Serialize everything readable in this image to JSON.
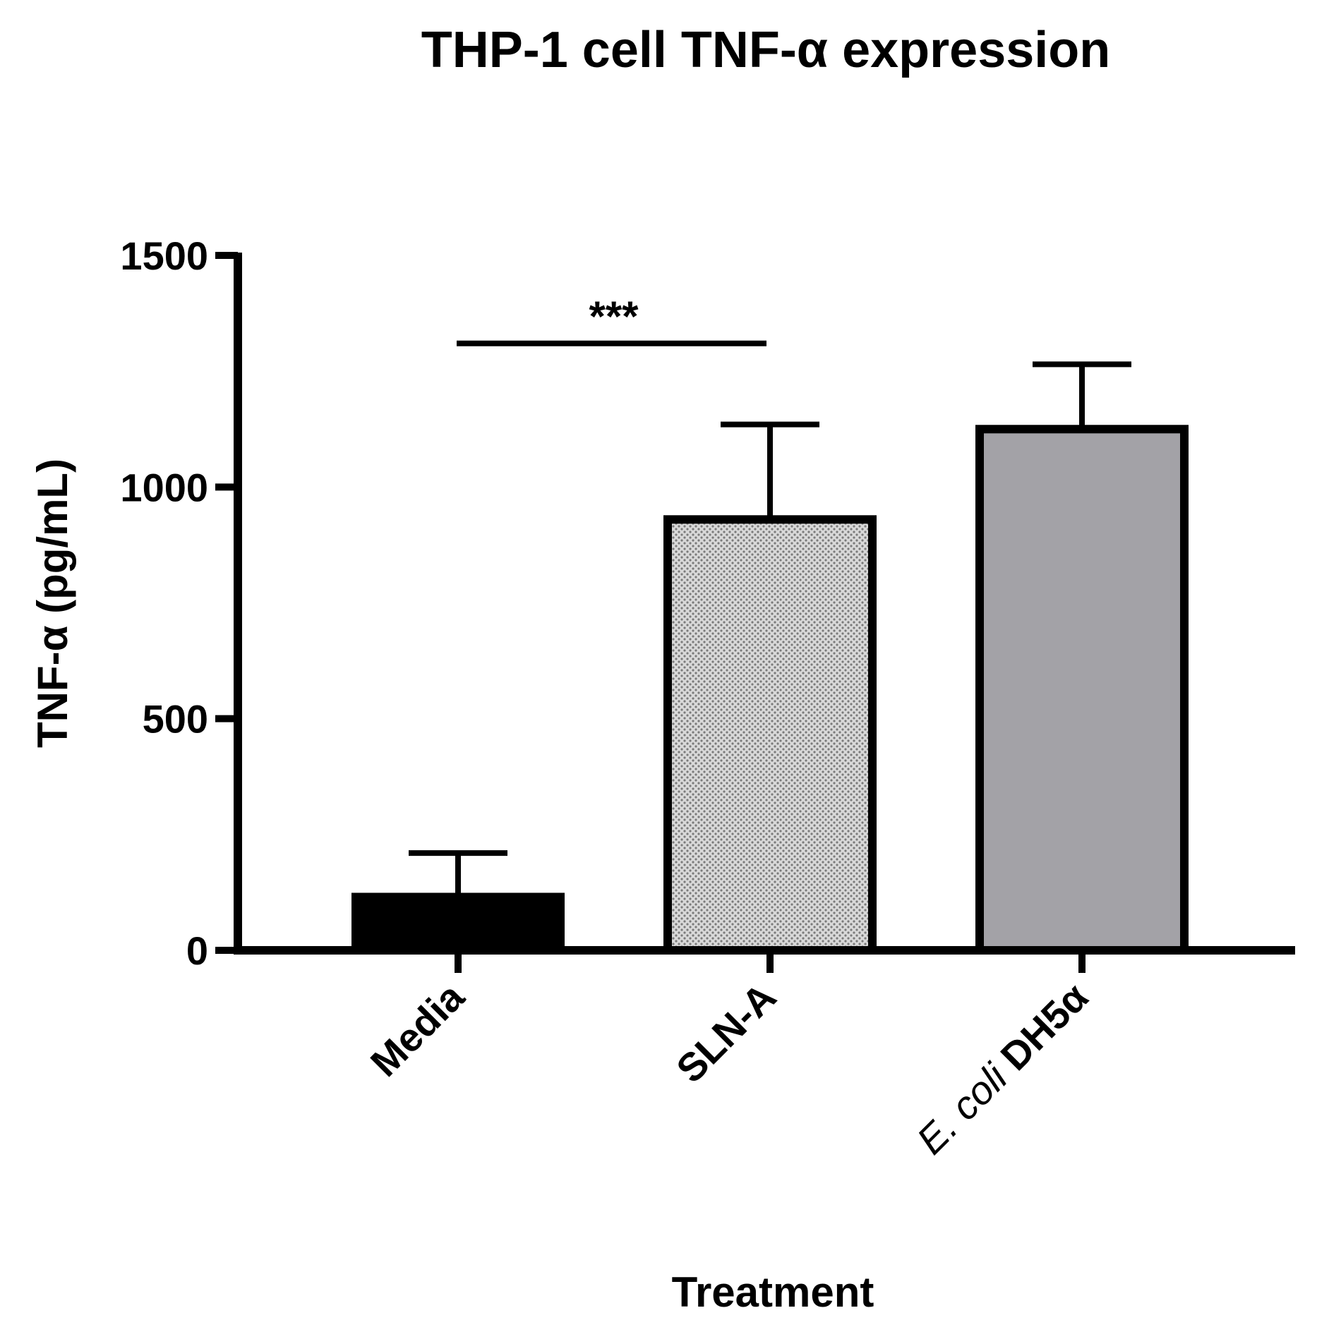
{
  "chart_data": {
    "type": "bar",
    "title": "THP-1 cell TNF-α expression",
    "xlabel": "Treatment",
    "ylabel": "TNF-α (pg/mL)",
    "ylim": [
      0,
      1500
    ],
    "yticks": [
      0,
      500,
      1000,
      1500
    ],
    "ytick_labels": [
      "0",
      "500",
      "1000",
      "1500"
    ],
    "categories": [
      "Media",
      "SLN-A",
      "E. coli DH5α"
    ],
    "category_labels": [
      {
        "italic": "",
        "normal": "Media"
      },
      {
        "italic": "",
        "normal": "SLN-A"
      },
      {
        "italic": "E. coli",
        "normal": "DH5α"
      }
    ],
    "values": [
      115,
      930,
      1125
    ],
    "errors": [
      95,
      205,
      140
    ],
    "bar_styles": [
      {
        "fill": "#000000",
        "pattern": "solid"
      },
      {
        "fill": "#c8c8c8",
        "pattern": "dotted"
      },
      {
        "fill": "#a3a2a7",
        "pattern": "solid"
      }
    ],
    "significance": [
      {
        "from": 0,
        "to": 1,
        "y": 1310,
        "label": "***"
      }
    ],
    "grid": false,
    "legend": "none"
  }
}
